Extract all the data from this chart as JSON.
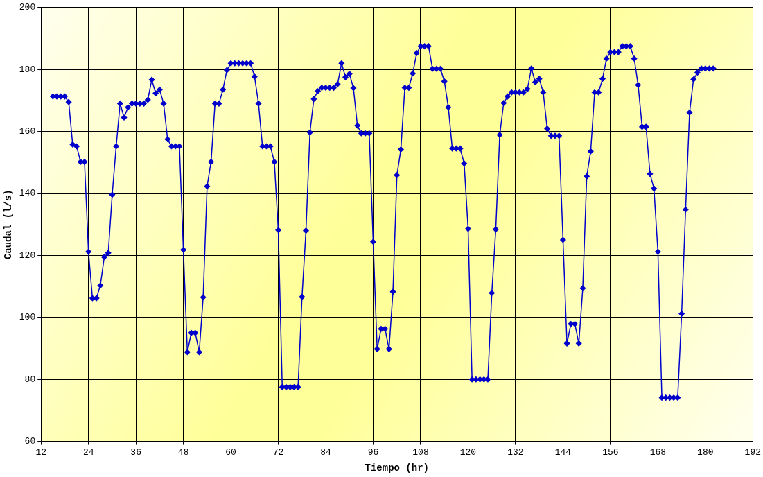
{
  "chart_data": {
    "type": "line",
    "xlabel": "Tiempo (hr)",
    "ylabel": "Caudal (l/s)",
    "x": [
      15,
      16,
      17,
      18,
      19,
      20,
      21,
      22,
      23,
      24,
      25,
      26,
      27,
      28,
      29,
      30,
      31,
      32,
      33,
      34,
      35,
      36,
      37,
      38,
      39,
      40,
      41,
      42,
      43,
      44,
      45,
      46,
      47,
      48,
      49,
      50,
      51,
      52,
      53,
      54,
      55,
      56,
      57,
      58,
      59,
      60,
      61,
      62,
      63,
      64,
      65,
      66,
      67,
      68,
      69,
      70,
      71,
      72,
      73,
      74,
      75,
      76,
      77,
      78,
      79,
      80,
      81,
      82,
      83,
      84,
      85,
      86,
      87,
      88,
      89,
      90,
      91,
      92,
      93,
      94,
      95,
      96,
      97,
      98,
      99,
      100,
      101,
      102,
      103,
      104,
      105,
      106,
      107,
      108,
      109,
      110,
      111,
      112,
      113,
      114,
      115,
      116,
      117,
      118,
      119,
      120,
      121,
      122,
      123,
      124,
      125,
      126,
      127,
      128,
      129,
      130,
      131,
      132,
      133,
      134,
      135,
      136,
      137,
      138,
      139,
      140,
      141,
      142,
      143,
      144,
      145,
      146,
      147,
      148,
      149,
      150,
      151,
      152,
      153,
      154,
      155,
      156,
      157,
      158,
      159,
      160,
      161,
      162,
      163,
      164,
      165,
      166,
      167,
      168,
      169,
      170,
      171,
      172,
      173,
      174,
      175,
      176,
      177,
      178,
      179,
      180,
      181,
      182
    ],
    "series": [
      {
        "color": "#0000cc",
        "values": [
          171.3,
          171.3,
          171.3,
          171.3,
          169.5,
          155.8,
          155.2,
          150.2,
          150.2,
          121.2,
          106.2,
          106.2,
          110.3,
          119.5,
          120.8,
          139.6,
          155.2,
          169,
          164.5,
          167.8,
          169,
          169,
          169,
          169,
          170.2,
          176.7,
          172.3,
          173.5,
          169,
          157.5,
          155.2,
          155.2,
          155.2,
          121.8,
          88.8,
          95,
          95,
          88.8,
          106.5,
          142.3,
          150.2,
          169,
          169,
          173.5,
          179.8,
          182,
          182,
          182,
          182,
          182,
          182,
          177.7,
          169,
          155.2,
          155.2,
          155.2,
          150.2,
          128.2,
          77.5,
          77.5,
          77.5,
          77.5,
          77.5,
          106.6,
          128,
          159.7,
          170.5,
          173,
          174.1,
          174.1,
          174.1,
          174.1,
          175.3,
          182,
          177.5,
          178.6,
          174,
          161.9,
          159.4,
          159.4,
          159.4,
          124.4,
          89.8,
          96.3,
          96.3,
          89.8,
          108.3,
          145.9,
          154.2,
          174.1,
          174.1,
          178.7,
          185.3,
          187.5,
          187.5,
          187.5,
          180.2,
          180.2,
          180.2,
          176.2,
          167.8,
          154.5,
          154.5,
          154.5,
          149.7,
          128.6,
          80,
          80,
          80,
          80,
          80,
          107.9,
          128.4,
          158.9,
          169.2,
          171.3,
          172.6,
          172.6,
          172.6,
          172.6,
          173.7,
          180.3,
          175.9,
          177,
          172.6,
          160.9,
          158.6,
          158.6,
          158.6,
          125,
          91.6,
          97.9,
          97.9,
          91.6,
          109.4,
          145.5,
          153.6,
          172.6,
          172.6,
          177,
          183.5,
          185.6,
          185.6,
          185.6,
          187.5,
          187.5,
          187.5,
          183.5,
          175,
          161.5,
          161.5,
          146.3,
          141.6,
          121.2,
          74.1,
          74.1,
          74.1,
          74.1,
          74.1,
          101.2,
          134.8,
          166.1,
          176.8,
          179,
          180.3,
          180.3,
          180.3,
          180.3
        ]
      }
    ],
    "xlim": [
      12,
      192
    ],
    "xticks": [
      12,
      24,
      36,
      48,
      60,
      72,
      84,
      96,
      108,
      120,
      132,
      144,
      156,
      168,
      180,
      192
    ],
    "ylim": [
      60,
      200
    ],
    "yticks": [
      60,
      80,
      100,
      120,
      140,
      160,
      180,
      200
    ],
    "grid": true,
    "legend": false,
    "marker": "diamond",
    "line_style": "solid"
  }
}
